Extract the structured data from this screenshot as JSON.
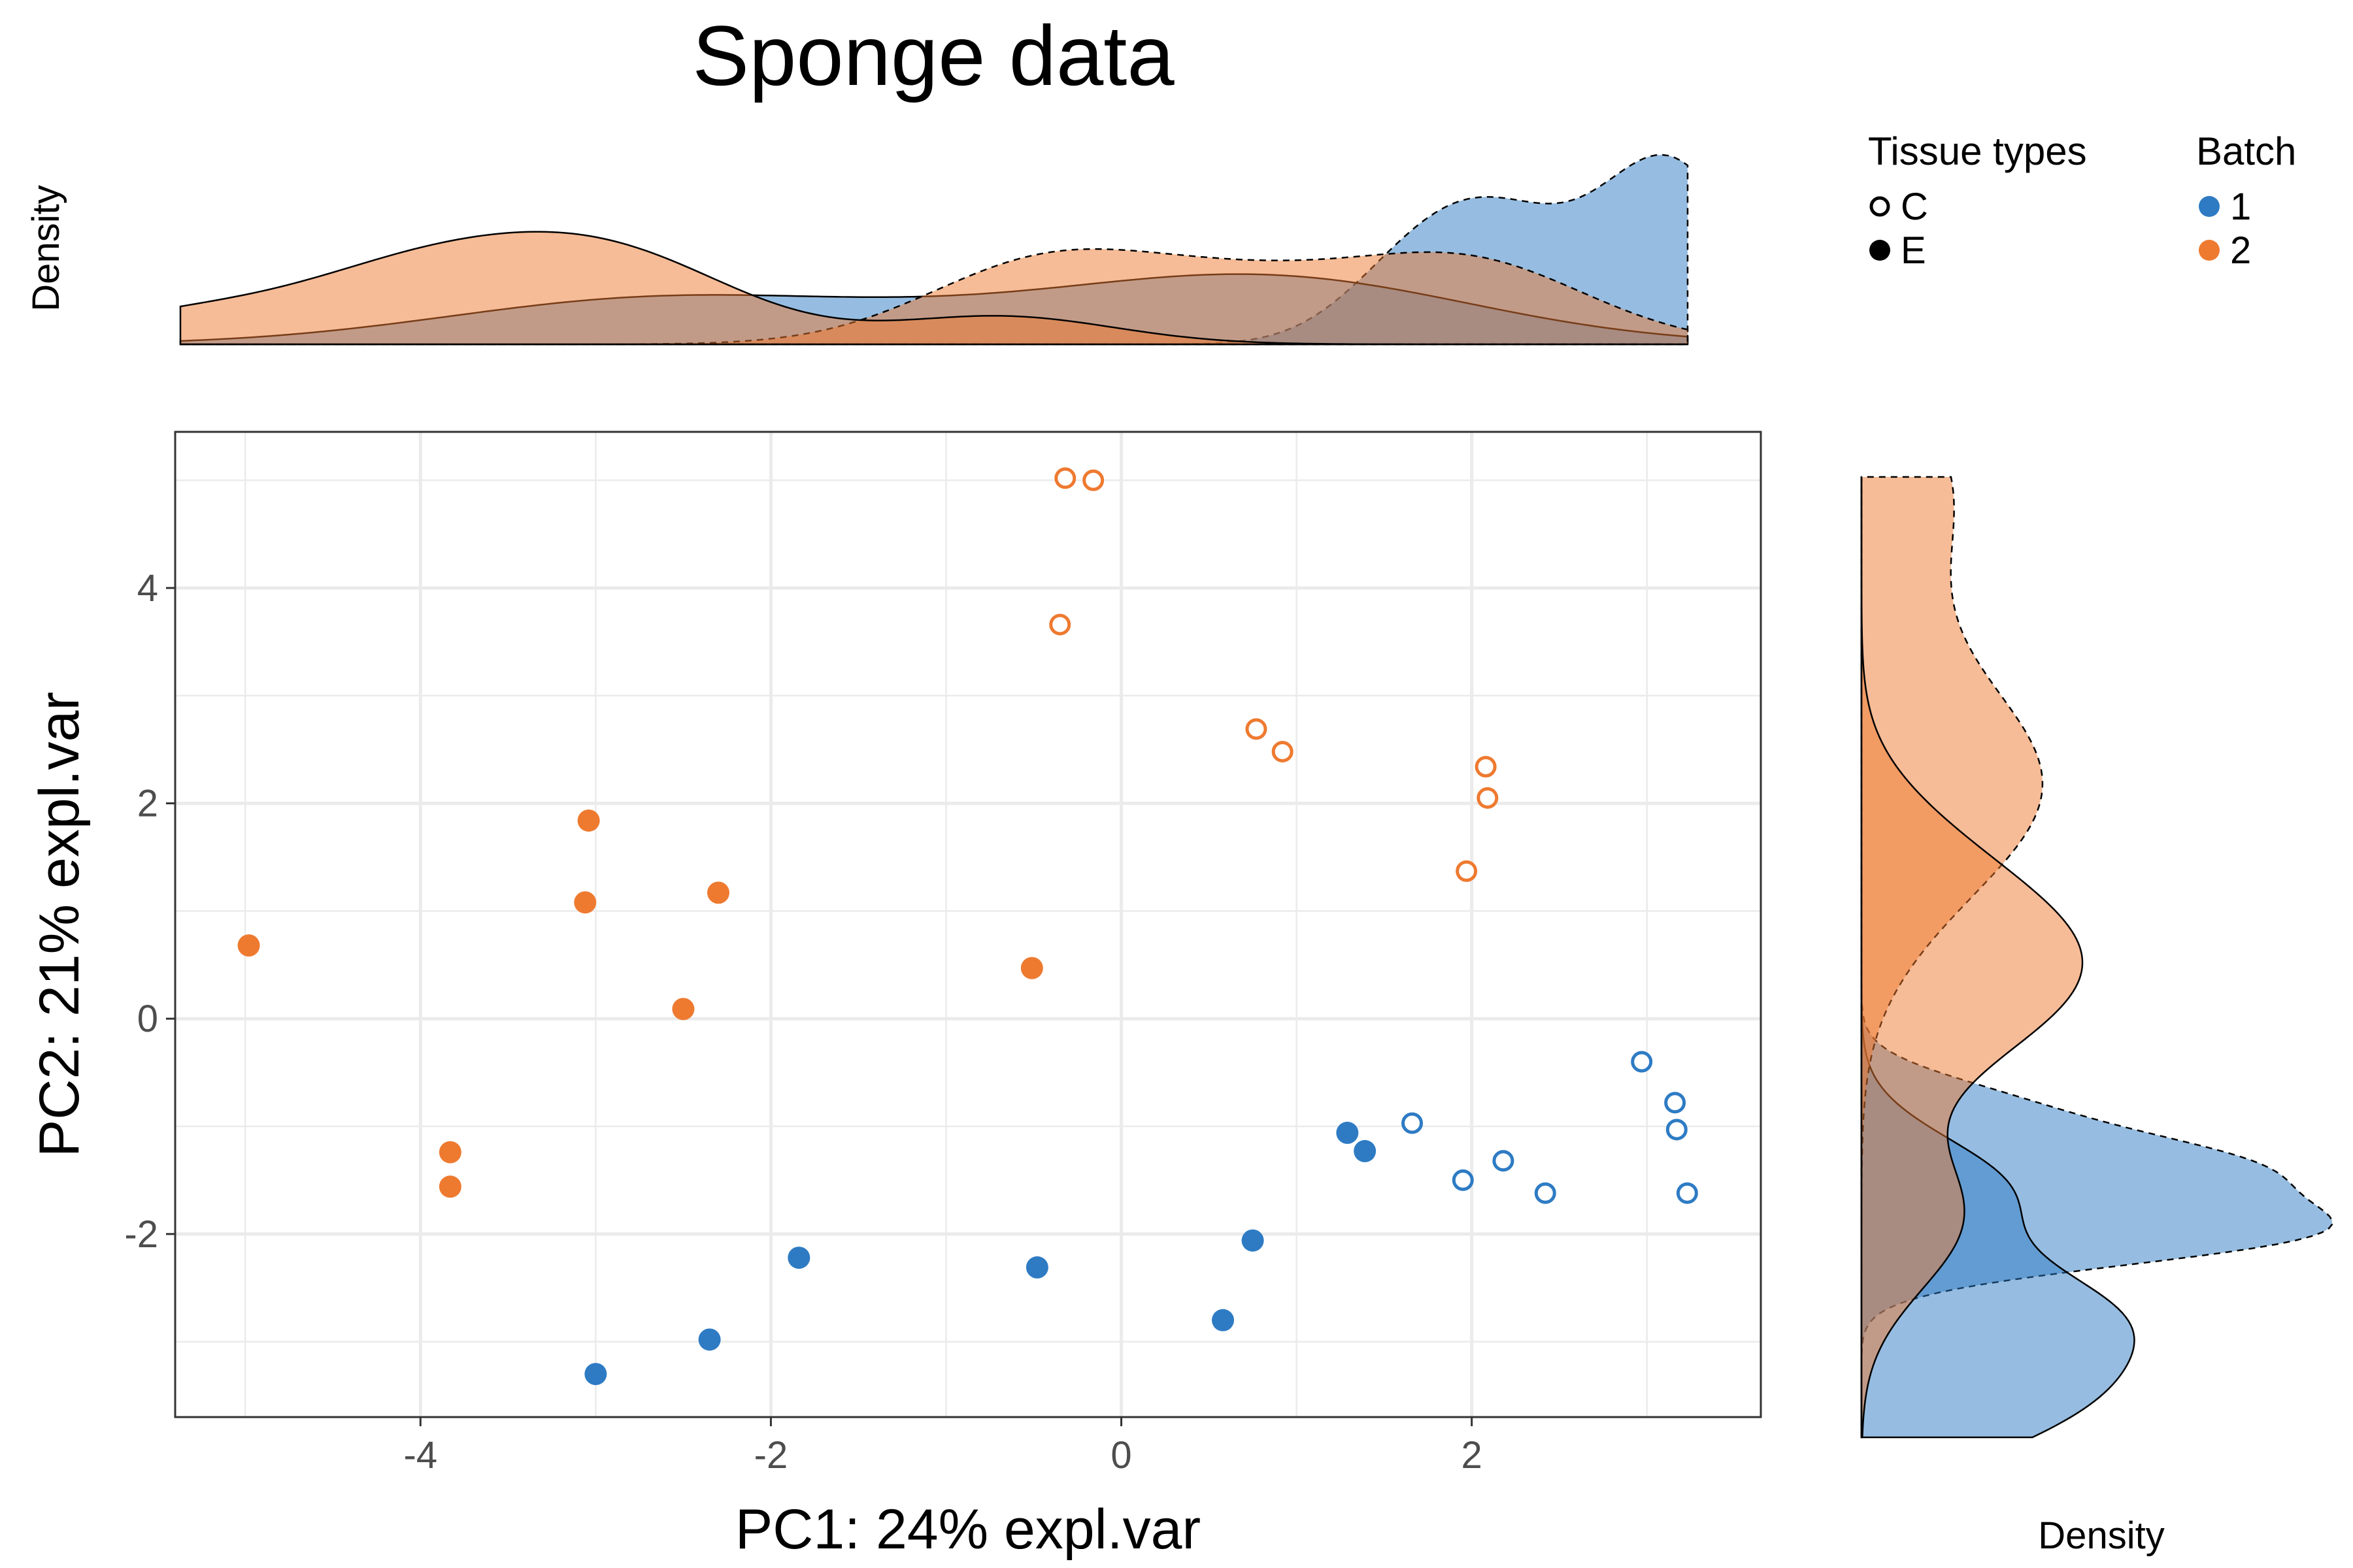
{
  "chart_data": {
    "type": "scatter",
    "title": "Sponge data",
    "xlabel": "PC1: 24% expl.var",
    "ylabel": "PC2: 21% expl.var",
    "xlim": [
      -5.4,
      3.65
    ],
    "ylim": [
      -3.7,
      5.45
    ],
    "x_ticks": [
      -4,
      -2,
      0,
      2
    ],
    "y_ticks": [
      -2,
      0,
      2,
      4
    ],
    "x_tick_labels": [
      "-4",
      "-2",
      "0",
      "2"
    ],
    "y_tick_labels": [
      "-2",
      "0",
      "2",
      "4"
    ],
    "grid": true,
    "legend_position": "top-right",
    "marginal_density_label": "Density",
    "legends": [
      {
        "title": "Tissue types",
        "entries": [
          {
            "label": "C",
            "shape": "open-circle"
          },
          {
            "label": "E",
            "shape": "filled-circle"
          }
        ]
      },
      {
        "title": "Batch",
        "entries": [
          {
            "label": "1",
            "color": "#2E7BC4"
          },
          {
            "label": "2",
            "color": "#EE7A30"
          }
        ]
      }
    ],
    "colors": {
      "batch1": "#2E7BC4",
      "batch2": "#EE7A30",
      "batch1_fill": "#9ABCE0",
      "batch2_fill": "#F7B890"
    },
    "points": [
      {
        "x": -0.32,
        "y": 5.02,
        "tissue": "C",
        "batch": "2"
      },
      {
        "x": -0.16,
        "y": 5.0,
        "tissue": "C",
        "batch": "2"
      },
      {
        "x": -0.35,
        "y": 3.66,
        "tissue": "C",
        "batch": "2"
      },
      {
        "x": 0.77,
        "y": 2.69,
        "tissue": "C",
        "batch": "2"
      },
      {
        "x": 0.92,
        "y": 2.48,
        "tissue": "C",
        "batch": "2"
      },
      {
        "x": 2.08,
        "y": 2.34,
        "tissue": "C",
        "batch": "2"
      },
      {
        "x": 2.09,
        "y": 2.05,
        "tissue": "C",
        "batch": "2"
      },
      {
        "x": 1.97,
        "y": 1.37,
        "tissue": "C",
        "batch": "2"
      },
      {
        "x": -4.98,
        "y": 0.68,
        "tissue": "E",
        "batch": "2"
      },
      {
        "x": -3.04,
        "y": 1.84,
        "tissue": "E",
        "batch": "2"
      },
      {
        "x": -3.06,
        "y": 1.08,
        "tissue": "E",
        "batch": "2"
      },
      {
        "x": -2.3,
        "y": 1.17,
        "tissue": "E",
        "batch": "2"
      },
      {
        "x": -2.5,
        "y": 0.09,
        "tissue": "E",
        "batch": "2"
      },
      {
        "x": -0.51,
        "y": 0.47,
        "tissue": "E",
        "batch": "2"
      },
      {
        "x": -3.83,
        "y": -1.24,
        "tissue": "E",
        "batch": "2"
      },
      {
        "x": -3.83,
        "y": -1.56,
        "tissue": "E",
        "batch": "2"
      },
      {
        "x": 1.66,
        "y": -0.97,
        "tissue": "C",
        "batch": "1"
      },
      {
        "x": 1.95,
        "y": -1.5,
        "tissue": "C",
        "batch": "1"
      },
      {
        "x": 2.18,
        "y": -1.32,
        "tissue": "C",
        "batch": "1"
      },
      {
        "x": 2.42,
        "y": -1.62,
        "tissue": "C",
        "batch": "1"
      },
      {
        "x": 2.97,
        "y": -0.4,
        "tissue": "C",
        "batch": "1"
      },
      {
        "x": 3.16,
        "y": -0.78,
        "tissue": "C",
        "batch": "1"
      },
      {
        "x": 3.17,
        "y": -1.03,
        "tissue": "C",
        "batch": "1"
      },
      {
        "x": 3.23,
        "y": -1.62,
        "tissue": "C",
        "batch": "1"
      },
      {
        "x": 1.29,
        "y": -1.06,
        "tissue": "E",
        "batch": "1"
      },
      {
        "x": 1.39,
        "y": -1.23,
        "tissue": "E",
        "batch": "1"
      },
      {
        "x": 0.75,
        "y": -2.06,
        "tissue": "E",
        "batch": "1"
      },
      {
        "x": 0.58,
        "y": -2.8,
        "tissue": "E",
        "batch": "1"
      },
      {
        "x": -0.48,
        "y": -2.31,
        "tissue": "E",
        "batch": "1"
      },
      {
        "x": -1.84,
        "y": -2.22,
        "tissue": "E",
        "batch": "1"
      },
      {
        "x": -2.35,
        "y": -2.98,
        "tissue": "E",
        "batch": "1"
      },
      {
        "x": -3.0,
        "y": -3.3,
        "tissue": "E",
        "batch": "1"
      }
    ]
  }
}
